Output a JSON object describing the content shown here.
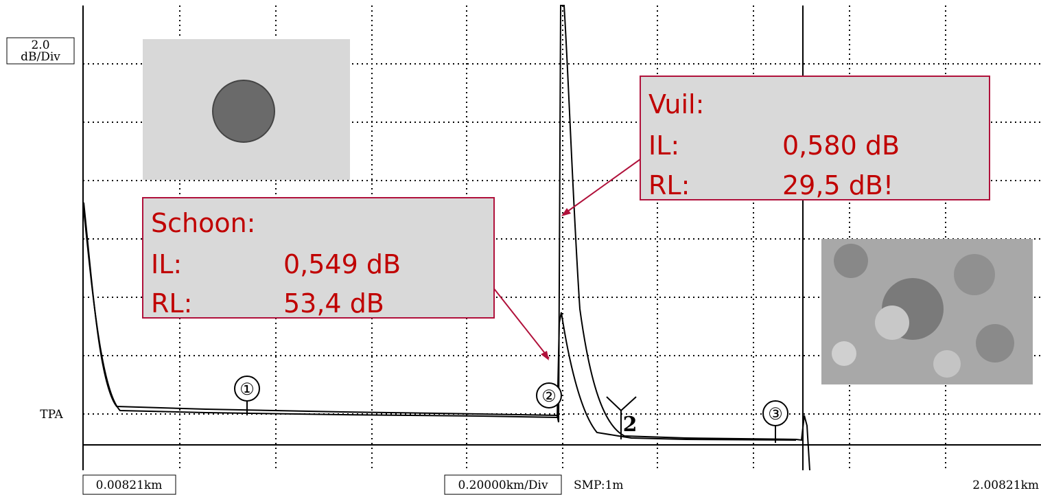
{
  "scale": {
    "vertical": {
      "value": "2.0",
      "unit": "dB/Div"
    },
    "reference": "TPA",
    "start": "0.00821km",
    "division": "0.20000km/Div",
    "sampling": "SMP:1m",
    "end": "2.00821km"
  },
  "markers": [
    "①",
    "②",
    "③",
    "2"
  ],
  "callouts": [
    {
      "title": "Schoon:",
      "rows": [
        [
          "IL:",
          "0,549 dB"
        ],
        [
          "RL:",
          "53,4 dB"
        ]
      ]
    },
    {
      "title": "Vuil:",
      "rows": [
        [
          "IL:",
          "0,580 dB"
        ],
        [
          "RL:",
          "29,5 dB!"
        ]
      ]
    }
  ]
}
